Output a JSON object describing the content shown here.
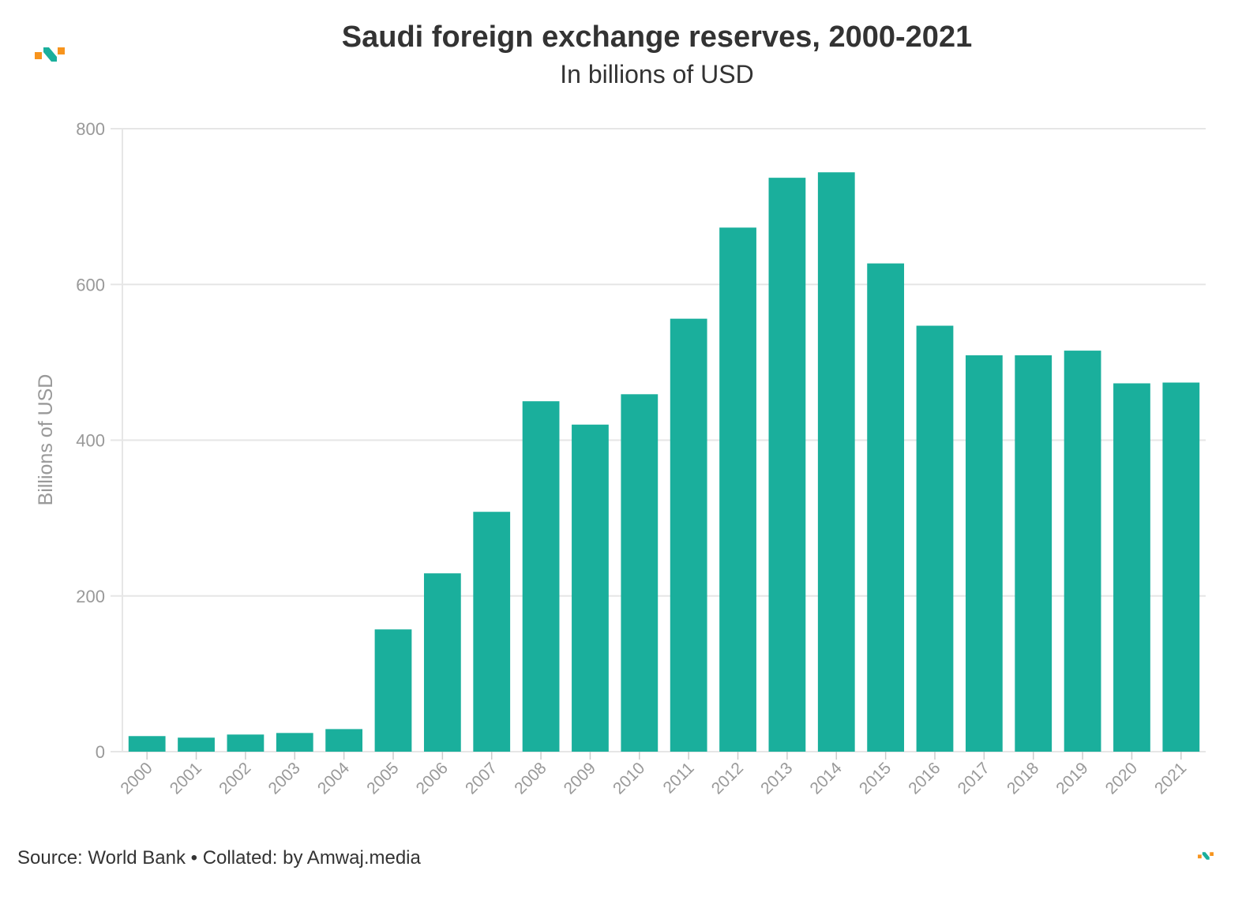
{
  "chart_data": {
    "type": "bar",
    "title": "Saudi foreign exchange reserves, 2000-2021",
    "subtitle": "In billions of USD",
    "ylabel": "Billions of USD",
    "xlabel": "",
    "ylim": [
      0,
      800
    ],
    "yticks": [
      0,
      200,
      400,
      600,
      800
    ],
    "grid": true,
    "color": "#1aaf9c",
    "categories": [
      "2000",
      "2001",
      "2002",
      "2003",
      "2004",
      "2005",
      "2006",
      "2007",
      "2008",
      "2009",
      "2010",
      "2011",
      "2012",
      "2013",
      "2014",
      "2015",
      "2016",
      "2017",
      "2018",
      "2019",
      "2020",
      "2021"
    ],
    "values": [
      20,
      18,
      22,
      24,
      29,
      157,
      229,
      308,
      450,
      420,
      459,
      556,
      673,
      737,
      744,
      627,
      547,
      509,
      509,
      515,
      473,
      474
    ]
  },
  "footer": {
    "source": "Source: World Bank • Collated: by Amwaj.media"
  },
  "logo": {
    "colors": {
      "orange": "#f7941d",
      "teal": "#1aaf9c"
    }
  }
}
